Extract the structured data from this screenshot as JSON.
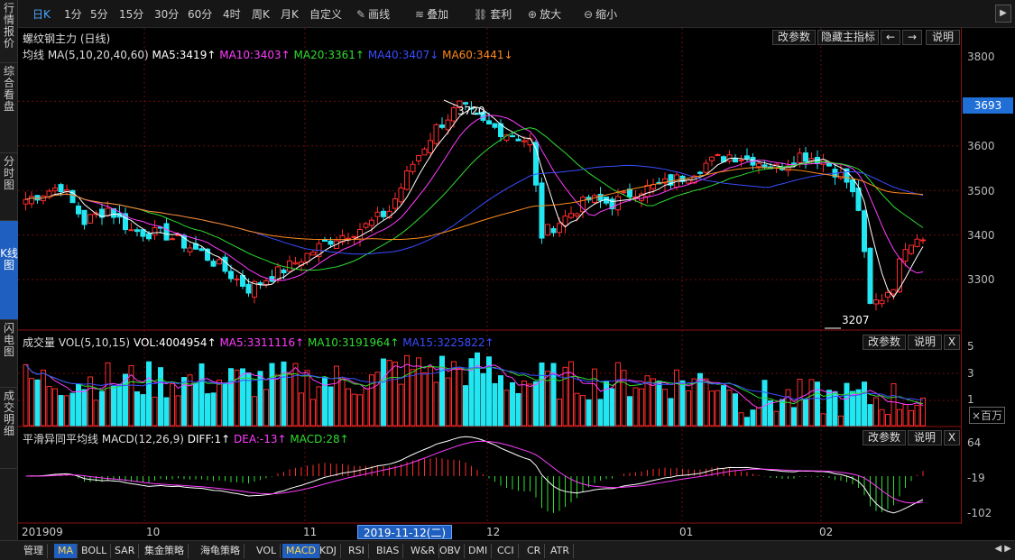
{
  "sidebar": {
    "items": [
      "行情报价",
      "综合看盘",
      "分时图",
      "K线图",
      "闪电图",
      "成交明细"
    ],
    "active_index": 3
  },
  "toolbar": {
    "periods": [
      "日K",
      "1分",
      "5分",
      "15分",
      "30分",
      "60分",
      "4时",
      "周K",
      "月K",
      "自定义"
    ],
    "active_period": 0,
    "tools": [
      {
        "icon": "pencil-icon",
        "glyph": "✎",
        "label": "画线"
      },
      {
        "icon": "layers-icon",
        "glyph": "≋",
        "label": "叠加"
      },
      {
        "icon": "link-icon",
        "glyph": "⛓",
        "label": "套利"
      },
      {
        "icon": "zoom-in-icon",
        "glyph": "⊕",
        "label": "放大"
      },
      {
        "icon": "zoom-out-icon",
        "glyph": "⊖",
        "label": "缩小"
      }
    ],
    "right_arrow": "▶"
  },
  "main": {
    "instrument": "螺纹钢主力 (日线)",
    "buttons": [
      "改参数",
      "隐藏主指标",
      "←",
      "→",
      "说明"
    ],
    "ma_prefix": "均线 MA(5,10,20,40,60)",
    "ma": [
      {
        "label": "MA5:3419↑",
        "color": "#ffffff"
      },
      {
        "label": "MA10:3403↑",
        "color": "#ff3cff"
      },
      {
        "label": "MA20:3361↑",
        "color": "#2fdc2f"
      },
      {
        "label": "MA40:3407↓",
        "color": "#3a4dff"
      },
      {
        "label": "MA60:3441↓",
        "color": "#ff8a1c"
      }
    ],
    "high_label": "3720",
    "low_label": "3207",
    "price_axis": [
      "3800",
      "3700",
      "3600",
      "3500",
      "3400",
      "3300"
    ],
    "last_price": "3693"
  },
  "volume": {
    "prefix": "成交量 VOL(5,10,15)",
    "vol": "VOL:4004954↑",
    "ma": [
      {
        "label": "MA5:3311116↑",
        "color": "#ff3cff"
      },
      {
        "label": "MA10:3191964↑",
        "color": "#2fdc2f"
      },
      {
        "label": "MA15:3225822↑",
        "color": "#3a4dff"
      }
    ],
    "buttons": [
      "改参数",
      "说明",
      "X"
    ],
    "axis": [
      "5",
      "3",
      "1"
    ],
    "unit": "×百万"
  },
  "macd": {
    "prefix": "平滑异同平均线 MACD(12,26,9)",
    "values": [
      {
        "label": "DIFF:1↑",
        "color": "#ffffff"
      },
      {
        "label": "DEA:-13↑",
        "color": "#ff3cff"
      },
      {
        "label": "MACD:28↑",
        "color": "#2fdc2f"
      }
    ],
    "buttons": [
      "改参数",
      "说明",
      "X"
    ],
    "axis": [
      "64",
      "-19",
      "-102"
    ]
  },
  "dates": {
    "labels": [
      "201909",
      "10",
      "11",
      "12",
      "01",
      "02"
    ],
    "cursor": "2019-11-12(二)"
  },
  "bottom": {
    "tabs": [
      "管理",
      "MA",
      "BOLL",
      "SAR",
      "集金策略",
      "海龟策略",
      "VOL",
      "MACD",
      "KDJ",
      "RSI",
      "BIAS",
      "W&R",
      "OBV",
      "DMI",
      "CCI",
      "CR",
      "ATR"
    ],
    "active": [
      "MA",
      "MACD"
    ],
    "arrows": "◀ ▶"
  },
  "colors": {
    "up": "#ff2b2b",
    "down": "#22e6f2",
    "grid": "#8b1111",
    "accent": "#1f5fbf"
  }
}
